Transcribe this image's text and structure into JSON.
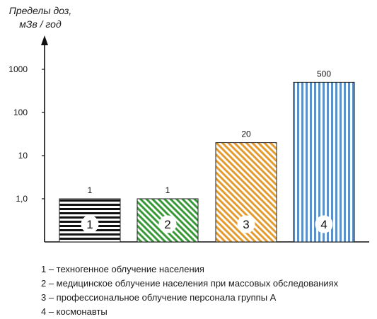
{
  "chart_data": {
    "type": "bar",
    "ylabel": "Пределы доз, мЗв / год",
    "yscale": "log",
    "ylim": [
      0.3,
      2000
    ],
    "yticks": [
      {
        "value": 1,
        "label": "1,0"
      },
      {
        "value": 10,
        "label": "10"
      },
      {
        "value": 100,
        "label": "100"
      },
      {
        "value": 1000,
        "label": "1000"
      }
    ],
    "categories": [
      "1",
      "2",
      "3",
      "4"
    ],
    "values": [
      1,
      1,
      20,
      500
    ],
    "value_labels": [
      "1",
      "1",
      "20",
      "500"
    ],
    "fills": [
      {
        "pattern": "horizontal-stripes",
        "color": "#111111"
      },
      {
        "pattern": "diagonal-stripes",
        "color": "#3a9a3a"
      },
      {
        "pattern": "diagonal-stripes",
        "color": "#e59a2e"
      },
      {
        "pattern": "vertical-stripes",
        "color": "#5b8fc9"
      }
    ],
    "grid": false
  },
  "legend": {
    "items": [
      "1 – техногенное облучение населения",
      "2 – медицинское облучение населения при массовых обследованиях",
      "3 – профессиональное облучение персонала группы А",
      "4 – космонавты"
    ]
  }
}
